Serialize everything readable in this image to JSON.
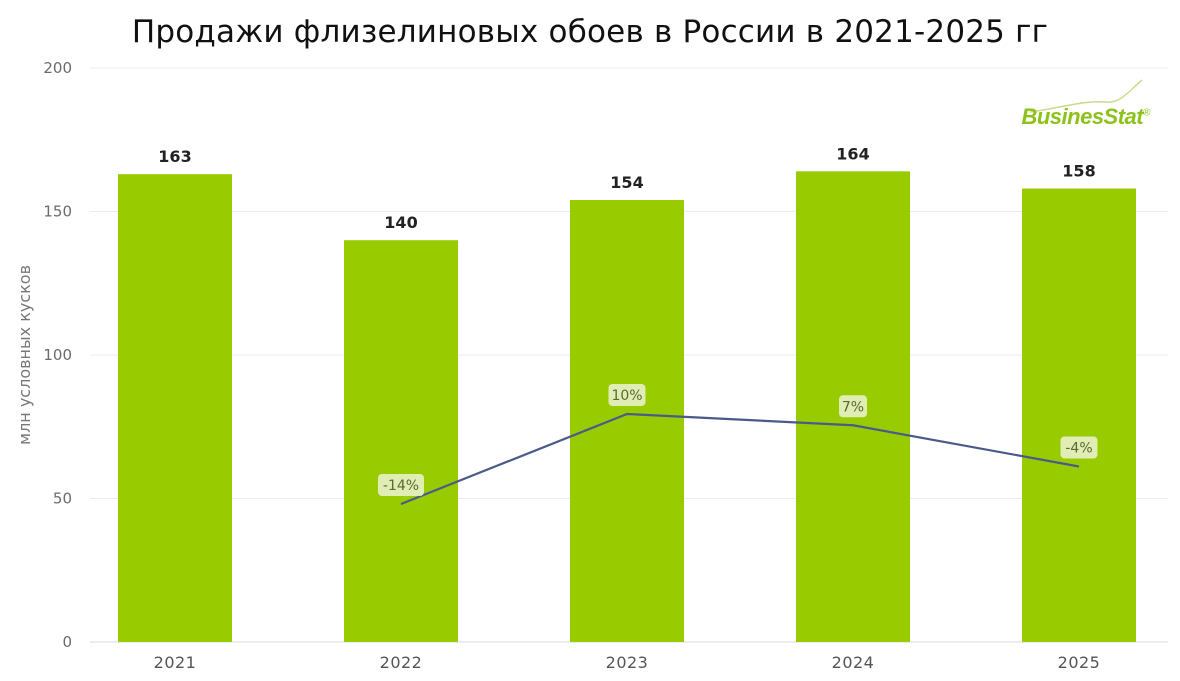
{
  "chart_data": {
    "type": "bar",
    "title": "Продажи флизелиновых обоев в России в 2021-2025 гг",
    "ylabel": "млн условных кусков",
    "categories": [
      "2021",
      "2022",
      "2023",
      "2024",
      "2025"
    ],
    "ylim": [
      0,
      200
    ],
    "yticks": [
      "0",
      "50",
      "100",
      "150",
      "200"
    ],
    "grid": true,
    "series": [
      {
        "values": [
          163,
          140,
          154,
          164,
          158
        ],
        "labels": [
          "163",
          "140",
          "154",
          "164",
          "158"
        ],
        "color": "#99cc00"
      }
    ],
    "growth_line": {
      "categories": [
        "2022",
        "2023",
        "2024",
        "2025"
      ],
      "values": [
        -14,
        10,
        7,
        -4
      ],
      "labels": [
        "-14%",
        "10%",
        "7%",
        "-4%"
      ],
      "color": "#4a5a8a"
    }
  },
  "logo": {
    "text": "BusinesStat",
    "mark": "®",
    "color": "#8cc21a"
  }
}
